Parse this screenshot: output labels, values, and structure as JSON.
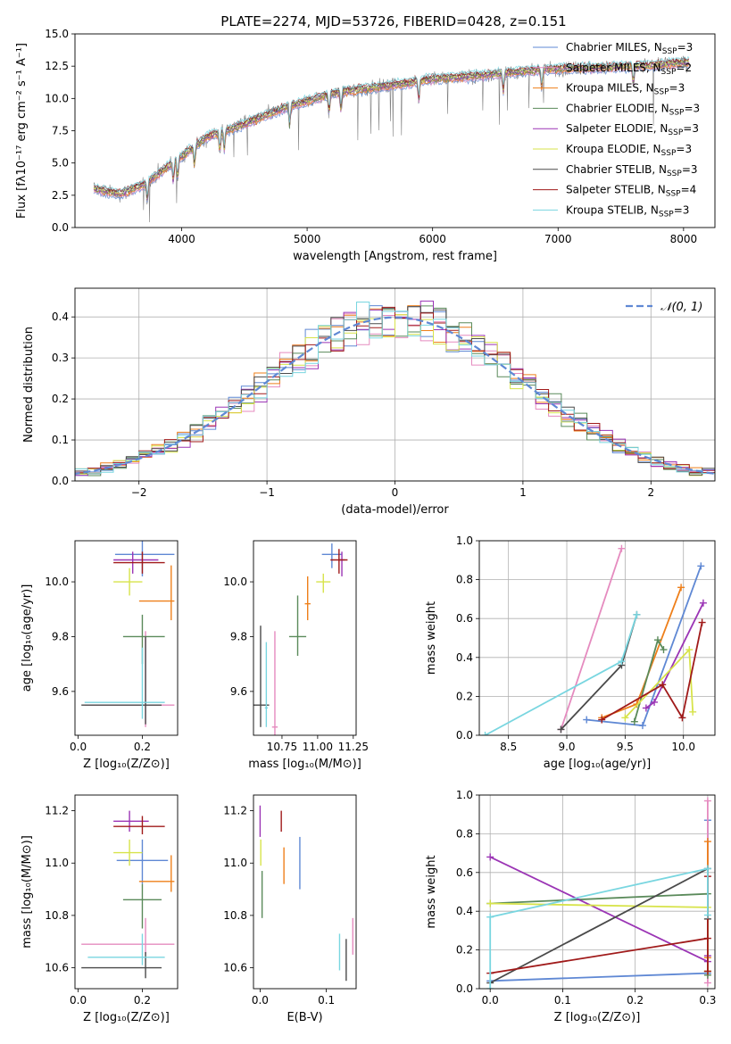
{
  "figure": {
    "title": "PLATE=2274, MJD=53726, FIBERID=0428, z=0.151"
  },
  "chart_data": [
    {
      "id": "spectrum",
      "type": "line",
      "xlabel": "wavelength [Angstrom, rest frame]",
      "ylabel": "Flux [fλ10⁻¹⁷ erg cm⁻² s⁻¹ A⁻¹]",
      "xlim": [
        3150,
        8250
      ],
      "ylim": [
        0,
        15
      ],
      "xticks": [
        4000,
        5000,
        6000,
        7000,
        8000
      ],
      "yticks": [
        0.0,
        2.5,
        5.0,
        7.5,
        10.0,
        12.5,
        15.0
      ],
      "ytick_labels": [
        "0.0",
        "2.5",
        "5.0",
        "7.5",
        "10.0",
        "12.5",
        "15.0"
      ],
      "legend": [
        {
          "name": "Chabrier MILES, N",
          "sub": "SSP",
          "tail": "=3",
          "color": "#5f88d4"
        },
        {
          "name": "Salpeter MILES, N",
          "sub": "SSP",
          "tail": "=2",
          "color": "#e58bbf"
        },
        {
          "name": "Kroupa MILES, N",
          "sub": "SSP",
          "tail": "=3",
          "color": "#ee7f1a"
        },
        {
          "name": "Chabrier ELODIE, N",
          "sub": "SSP",
          "tail": "=3",
          "color": "#5a8a5a"
        },
        {
          "name": "Salpeter ELODIE, N",
          "sub": "SSP",
          "tail": "=3",
          "color": "#9b35b5"
        },
        {
          "name": "Kroupa ELODIE, N",
          "sub": "SSP",
          "tail": "=3",
          "color": "#d7e34a"
        },
        {
          "name": "Chabrier STELIB, N",
          "sub": "SSP",
          "tail": "=3",
          "color": "#4a4a4a"
        },
        {
          "name": "Salpeter STELIB, N",
          "sub": "SSP",
          "tail": "=4",
          "color": "#a01a1a"
        },
        {
          "name": "Kroupa STELIB, N",
          "sub": "SSP",
          "tail": "=3",
          "color": "#79d6e0"
        }
      ],
      "continuum_trend": {
        "x": [
          3300,
          3500,
          3700,
          3900,
          4000,
          4200,
          4500,
          4800,
          5000,
          5200,
          5500,
          5800,
          6000,
          6300,
          6600,
          7000,
          7400,
          7800,
          8000
        ],
        "y": [
          3.0,
          2.6,
          3.3,
          4.8,
          5.5,
          7.0,
          8.0,
          9.2,
          9.8,
          10.4,
          10.8,
          11.2,
          11.5,
          11.7,
          12.0,
          12.3,
          12.4,
          12.6,
          12.8
        ]
      },
      "observed_color": "#808080"
    },
    {
      "id": "residuals",
      "type": "histogram",
      "xlabel": "(data-model)/error",
      "ylabel": "Normed distribution",
      "xlim": [
        -2.5,
        2.5
      ],
      "ylim": [
        0,
        0.47
      ],
      "xticks": [
        -2,
        -1,
        0,
        1,
        2
      ],
      "xtick_labels": [
        "−2",
        "−1",
        "0",
        "1",
        "2"
      ],
      "yticks": [
        0.0,
        0.1,
        0.2,
        0.3,
        0.4
      ],
      "ytick_labels": [
        "0.0",
        "0.1",
        "0.2",
        "0.3",
        "0.4"
      ],
      "bin_width": 0.1,
      "reference_curve": {
        "label": "𝒩(0, 1)",
        "mean": 0,
        "sigma": 1,
        "color": "#5f88d4"
      },
      "grid": true
    },
    {
      "id": "age_vs_Z",
      "type": "errorbar",
      "xlabel": "Z [log₁₀(Z/Z⊙)]",
      "ylabel": "age  [log₁₀(age/yr)]",
      "xlim": [
        -0.01,
        0.31
      ],
      "ylim": [
        9.44,
        10.15
      ],
      "xticks": [
        0.0,
        0.2
      ],
      "xtick_labels": [
        "0.0",
        "0.2"
      ],
      "yticks": [
        9.6,
        9.8,
        10.0
      ],
      "ytick_labels": [
        "9.6",
        "9.8",
        "10.0"
      ],
      "points": [
        {
          "color": "#5f88d4",
          "x": 0.2,
          "xerr": [
            0.085,
            0.1
          ],
          "y": 10.1,
          "yerr": [
            0.08,
            0.05
          ]
        },
        {
          "color": "#e58bbf",
          "x": 0.21,
          "xerr": [
            0.19,
            0.09
          ],
          "y": 9.55,
          "yerr": [
            0.08,
            0.27
          ]
        },
        {
          "color": "#ee7f1a",
          "x": 0.29,
          "xerr": [
            0.1,
            0.01
          ],
          "y": 9.93,
          "yerr": [
            0.07,
            0.13
          ]
        },
        {
          "color": "#5a8a5a",
          "x": 0.2,
          "xerr": [
            0.06,
            0.07
          ],
          "y": 9.8,
          "yerr": [
            0.1,
            0.08
          ]
        },
        {
          "color": "#9b35b5",
          "x": 0.17,
          "xerr": [
            0.06,
            0.08
          ],
          "y": 10.08,
          "yerr": [
            0.05,
            0.03
          ]
        },
        {
          "color": "#d7e34a",
          "x": 0.16,
          "xerr": [
            0.05,
            0.04
          ],
          "y": 10.0,
          "yerr": [
            0.05,
            0.05
          ]
        },
        {
          "color": "#4a4a4a",
          "x": 0.21,
          "xerr": [
            0.2,
            0.05
          ],
          "y": 9.55,
          "yerr": [
            0.07,
            0.25
          ]
        },
        {
          "color": "#a01a1a",
          "x": 0.2,
          "xerr": [
            0.09,
            0.07
          ],
          "y": 10.07,
          "yerr": [
            0.04,
            0.04
          ]
        },
        {
          "color": "#79d6e0",
          "x": 0.2,
          "xerr": [
            0.18,
            0.07
          ],
          "y": 9.56,
          "yerr": [
            0.06,
            0.2
          ]
        }
      ]
    },
    {
      "id": "age_vs_mass",
      "type": "errorbar",
      "xlabel": "mass [log₁₀(M/M⊙)]",
      "ylabel": "",
      "xlim": [
        10.55,
        11.27
      ],
      "ylim": [
        9.44,
        10.15
      ],
      "xticks": [
        10.75,
        11.0,
        11.25
      ],
      "xtick_labels": [
        "10.75",
        "11.00",
        "11.25"
      ],
      "yticks": [
        9.6,
        9.8,
        10.0
      ],
      "ytick_labels": [
        "9.6",
        "9.8",
        "10.0"
      ],
      "points": [
        {
          "color": "#5f88d4",
          "x": 11.1,
          "xerr": [
            0.07,
            0.07
          ],
          "y": 10.1,
          "yerr": [
            0.05,
            0.04
          ]
        },
        {
          "color": "#e58bbf",
          "x": 10.7,
          "xerr": [
            0.02,
            0.02
          ],
          "y": 9.47,
          "yerr": [
            0.05,
            0.35
          ]
        },
        {
          "color": "#ee7f1a",
          "x": 10.93,
          "xerr": [
            0.02,
            0.02
          ],
          "y": 9.92,
          "yerr": [
            0.06,
            0.1
          ]
        },
        {
          "color": "#5a8a5a",
          "x": 10.86,
          "xerr": [
            0.06,
            0.06
          ],
          "y": 9.8,
          "yerr": [
            0.07,
            0.15
          ]
        },
        {
          "color": "#9b35b5",
          "x": 11.17,
          "xerr": [
            0.02,
            0.02
          ],
          "y": 10.08,
          "yerr": [
            0.06,
            0.03
          ]
        },
        {
          "color": "#d7e34a",
          "x": 11.04,
          "xerr": [
            0.05,
            0.05
          ],
          "y": 10.0,
          "yerr": [
            0.04,
            0.03
          ]
        },
        {
          "color": "#4a4a4a",
          "x": 10.6,
          "xerr": [
            0.06,
            0.06
          ],
          "y": 9.55,
          "yerr": [
            0.08,
            0.29
          ]
        },
        {
          "color": "#a01a1a",
          "x": 11.15,
          "xerr": [
            0.06,
            0.06
          ],
          "y": 10.08,
          "yerr": [
            0.05,
            0.04
          ]
        },
        {
          "color": "#79d6e0",
          "x": 10.64,
          "xerr": [
            0.01,
            0.01
          ],
          "y": 9.54,
          "yerr": [
            0.07,
            0.24
          ]
        }
      ]
    },
    {
      "id": "massweight_vs_age",
      "type": "line",
      "xlabel": "age  [log₁₀(age/yr)]",
      "ylabel": "mass weight",
      "xlim": [
        8.25,
        10.27
      ],
      "ylim": [
        0,
        1.0
      ],
      "xticks": [
        8.5,
        9.0,
        9.5,
        10.0
      ],
      "xtick_labels": [
        "8.5",
        "9.0",
        "9.5",
        "10.0"
      ],
      "yticks": [
        0.0,
        0.2,
        0.4,
        0.6,
        0.8,
        1.0
      ],
      "ytick_labels": [
        "0.0",
        "0.2",
        "0.4",
        "0.6",
        "0.8",
        "1.0"
      ],
      "grid": true,
      "series": [
        {
          "color": "#5f88d4",
          "x": [
            9.17,
            9.65,
            10.15
          ],
          "y": [
            0.08,
            0.05,
            0.87
          ]
        },
        {
          "color": "#e58bbf",
          "x": [
            8.95,
            9.47
          ],
          "y": [
            0.03,
            0.96
          ]
        },
        {
          "color": "#ee7f1a",
          "x": [
            9.3,
            9.6,
            9.98
          ],
          "y": [
            0.09,
            0.16,
            0.76
          ]
        },
        {
          "color": "#5a8a5a",
          "x": [
            9.58,
            9.78,
            9.83
          ],
          "y": [
            0.07,
            0.49,
            0.44
          ]
        },
        {
          "color": "#9b35b5",
          "x": [
            9.68,
            9.75,
            10.17
          ],
          "y": [
            0.14,
            0.17,
            0.68
          ]
        },
        {
          "color": "#d7e34a",
          "x": [
            9.5,
            10.05,
            10.08
          ],
          "y": [
            0.09,
            0.44,
            0.12
          ]
        },
        {
          "color": "#4a4a4a",
          "x": [
            8.95,
            9.47,
            9.6
          ],
          "y": [
            0.03,
            0.36,
            0.62
          ]
        },
        {
          "color": "#a01a1a",
          "x": [
            9.3,
            9.82,
            9.99,
            10.16
          ],
          "y": [
            0.08,
            0.26,
            0.09,
            0.58
          ]
        },
        {
          "color": "#79d6e0",
          "x": [
            8.3,
            9.47,
            9.6
          ],
          "y": [
            0.0,
            0.38,
            0.62
          ]
        }
      ]
    },
    {
      "id": "mass_vs_Z",
      "type": "errorbar",
      "xlabel": "Z [log₁₀(Z/Z⊙)]",
      "ylabel": "mass [log₁₀(M/M⊙)]",
      "xlim": [
        -0.01,
        0.31
      ],
      "ylim": [
        10.52,
        11.26
      ],
      "xticks": [
        0.0,
        0.2
      ],
      "xtick_labels": [
        "0.0",
        "0.2"
      ],
      "yticks": [
        10.6,
        10.8,
        11.0,
        11.2
      ],
      "ytick_labels": [
        "10.6",
        "10.8",
        "11.0",
        "11.2"
      ],
      "points": [
        {
          "color": "#5f88d4",
          "x": 0.2,
          "xerr": [
            0.08,
            0.08
          ],
          "y": 11.01,
          "yerr": [
            0.09,
            0.08
          ]
        },
        {
          "color": "#e58bbf",
          "x": 0.21,
          "xerr": [
            0.2,
            0.09
          ],
          "y": 10.69,
          "yerr": [
            0.04,
            0.1
          ]
        },
        {
          "color": "#ee7f1a",
          "x": 0.29,
          "xerr": [
            0.1,
            0.01
          ],
          "y": 10.93,
          "yerr": [
            0.04,
            0.1
          ]
        },
        {
          "color": "#5a8a5a",
          "x": 0.2,
          "xerr": [
            0.06,
            0.06
          ],
          "y": 10.86,
          "yerr": [
            0.11,
            0.06
          ]
        },
        {
          "color": "#9b35b5",
          "x": 0.16,
          "xerr": [
            0.05,
            0.06
          ],
          "y": 11.16,
          "yerr": [
            0.04,
            0.04
          ]
        },
        {
          "color": "#d7e34a",
          "x": 0.16,
          "xerr": [
            0.05,
            0.04
          ],
          "y": 11.04,
          "yerr": [
            0.05,
            0.05
          ]
        },
        {
          "color": "#4a4a4a",
          "x": 0.21,
          "xerr": [
            0.2,
            0.05
          ],
          "y": 10.6,
          "yerr": [
            0.04,
            0.06
          ]
        },
        {
          "color": "#a01a1a",
          "x": 0.2,
          "xerr": [
            0.09,
            0.07
          ],
          "y": 11.14,
          "yerr": [
            0.03,
            0.04
          ]
        },
        {
          "color": "#79d6e0",
          "x": 0.2,
          "xerr": [
            0.17,
            0.07
          ],
          "y": 10.64,
          "yerr": [
            0.03,
            0.09
          ]
        }
      ]
    },
    {
      "id": "mass_vs_EBV",
      "type": "errorbar",
      "xlabel": "E(B-V)",
      "ylabel": "",
      "xlim": [
        -0.01,
        0.145
      ],
      "ylim": [
        10.52,
        11.26
      ],
      "xticks": [
        0.0,
        0.1
      ],
      "xtick_labels": [
        "0.0",
        "0.1"
      ],
      "yticks": [
        10.6,
        10.8,
        11.0,
        11.2
      ],
      "ytick_labels": [
        "10.6",
        "10.8",
        "11.0",
        "11.2"
      ],
      "points": [
        {
          "color": "#5f88d4",
          "x": 0.06,
          "y": 11.0,
          "yerr": [
            0.1,
            0.1
          ]
        },
        {
          "color": "#e58bbf",
          "x": 0.14,
          "y": 10.69,
          "yerr": [
            0.04,
            0.1
          ]
        },
        {
          "color": "#ee7f1a",
          "x": 0.036,
          "y": 10.99,
          "yerr": [
            0.07,
            0.07
          ]
        },
        {
          "color": "#5a8a5a",
          "x": 0.003,
          "y": 10.91,
          "yerr": [
            0.12,
            0.06
          ]
        },
        {
          "color": "#9b35b5",
          "x": 0.0,
          "y": 11.16,
          "yerr": [
            0.06,
            0.06
          ]
        },
        {
          "color": "#d7e34a",
          "x": 0.001,
          "y": 11.04,
          "yerr": [
            0.05,
            0.05
          ]
        },
        {
          "color": "#4a4a4a",
          "x": 0.13,
          "y": 10.63,
          "yerr": [
            0.08,
            0.08
          ]
        },
        {
          "color": "#a01a1a",
          "x": 0.032,
          "y": 11.16,
          "yerr": [
            0.04,
            0.04
          ]
        },
        {
          "color": "#79d6e0",
          "x": 0.12,
          "y": 10.64,
          "yerr": [
            0.05,
            0.09
          ]
        }
      ]
    },
    {
      "id": "massweight_vs_Z",
      "type": "line",
      "xlabel": "Z [log₁₀(Z/Z⊙)]",
      "ylabel": "mass weight",
      "xlim": [
        -0.015,
        0.31
      ],
      "ylim": [
        0,
        1.0
      ],
      "xticks": [
        0.0,
        0.1,
        0.2,
        0.3
      ],
      "xtick_labels": [
        "0.0",
        "0.1",
        "0.2",
        "0.3"
      ],
      "yticks": [
        0.0,
        0.2,
        0.4,
        0.6,
        0.8,
        1.0
      ],
      "ytick_labels": [
        "0.0",
        "0.2",
        "0.4",
        "0.6",
        "0.8",
        "1.0"
      ],
      "grid": true,
      "series": [
        {
          "color": "#5f88d4",
          "x": [
            0.0,
            0.3,
            0.3
          ],
          "y": [
            0.04,
            0.08,
            0.87
          ]
        },
        {
          "color": "#e58bbf",
          "x": [
            0.3,
            0.3
          ],
          "y": [
            0.03,
            0.97
          ]
        },
        {
          "color": "#ee7f1a",
          "x": [
            0.3,
            0.3,
            0.3
          ],
          "y": [
            0.09,
            0.16,
            0.76
          ]
        },
        {
          "color": "#5a8a5a",
          "x": [
            0.0,
            0.3,
            0.3
          ],
          "y": [
            0.44,
            0.49,
            0.07
          ]
        },
        {
          "color": "#9b35b5",
          "x": [
            0.0,
            0.3,
            0.3
          ],
          "y": [
            0.68,
            0.14,
            0.17
          ]
        },
        {
          "color": "#d7e34a",
          "x": [
            0.0,
            0.3,
            0.3
          ],
          "y": [
            0.44,
            0.42,
            0.09
          ]
        },
        {
          "color": "#4a4a4a",
          "x": [
            0.0,
            0.3,
            0.3
          ],
          "y": [
            0.03,
            0.62,
            0.36
          ]
        },
        {
          "color": "#a01a1a",
          "x": [
            0.0,
            0.3,
            0.3,
            0.3
          ],
          "y": [
            0.08,
            0.26,
            0.09,
            0.58
          ]
        },
        {
          "color": "#79d6e0",
          "x": [
            0.0,
            0.0,
            0.3,
            0.3
          ],
          "y": [
            0.0,
            0.37,
            0.62,
            0.38
          ]
        }
      ]
    }
  ]
}
